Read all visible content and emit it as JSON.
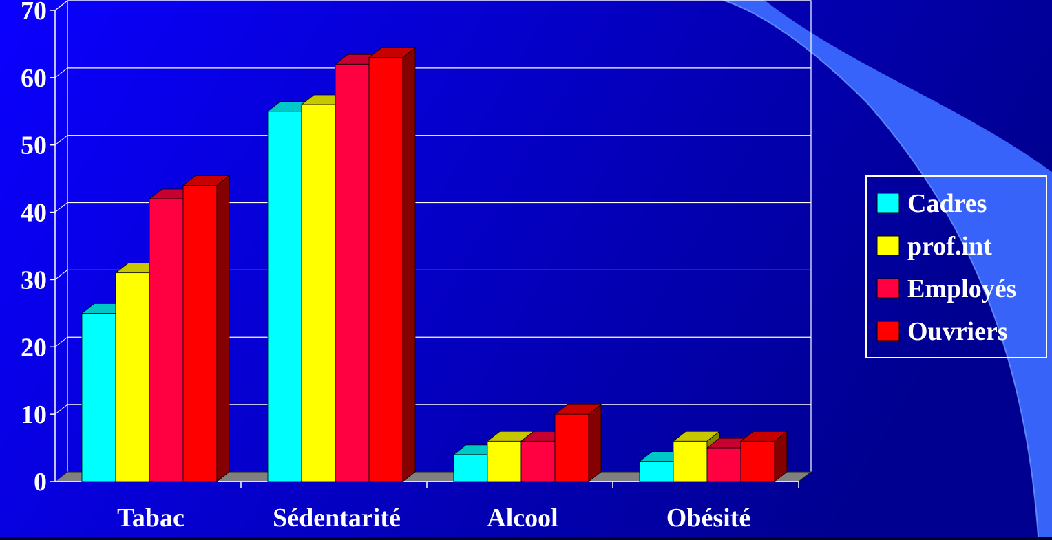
{
  "chart_data": {
    "type": "bar",
    "title": "",
    "xlabel": "",
    "ylabel": "",
    "ylim": [
      0,
      70
    ],
    "yticks": [
      "0",
      "10",
      "20",
      "30",
      "40",
      "50",
      "60",
      "70"
    ],
    "grid": true,
    "legend_position": "right",
    "categories": [
      "Tabac",
      "Sédentarité",
      "Alcool",
      "Obésité"
    ],
    "series": [
      {
        "name": "Cadres",
        "values": [
          25,
          55,
          4,
          3
        ],
        "color": "#00ffff"
      },
      {
        "name": "prof.int",
        "values": [
          31,
          56,
          6,
          6
        ],
        "color": "#ffff00"
      },
      {
        "name": "Employés",
        "values": [
          42,
          62,
          6,
          5
        ],
        "color": "#ff0040"
      },
      {
        "name": "Ouvriers",
        "values": [
          44,
          63,
          10,
          6
        ],
        "color": "#ff0000"
      }
    ]
  },
  "colors": {
    "background": "#00002e",
    "plot_gradient_start": "#0a00ff",
    "plot_gradient_end": "#000090",
    "swoosh": "#3a68ff",
    "text": "#ffffff",
    "floor": "#808080"
  }
}
